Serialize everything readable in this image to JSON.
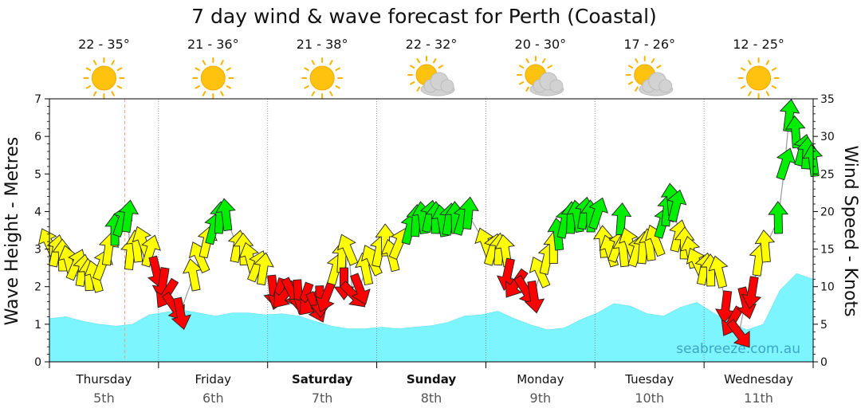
{
  "chart_data": {
    "type": "line",
    "title": "7 day wind & wave forecast for Perth (Coastal)",
    "y_left_label": "Wave Height - Metres",
    "y_right_label": "Wind Speed - Knots",
    "y_left_range": [
      0,
      7
    ],
    "y_right_range": [
      0,
      35
    ],
    "y_left_ticks": [
      "0",
      "1",
      "2",
      "3",
      "4",
      "5",
      "6",
      "7"
    ],
    "y_right_ticks": [
      "0",
      "5",
      "10",
      "15",
      "20",
      "25",
      "30",
      "35"
    ],
    "credit": "seabreeze.com.au",
    "days": [
      {
        "name": "Thursday",
        "date": "5th",
        "temp": "22 - 35°",
        "weather": "sunny",
        "bold": false
      },
      {
        "name": "Friday",
        "date": "6th",
        "temp": "21 - 36°",
        "weather": "sunny",
        "bold": false
      },
      {
        "name": "Saturday",
        "date": "7th",
        "temp": "21 - 38°",
        "weather": "sunny",
        "bold": true
      },
      {
        "name": "Sunday",
        "date": "8th",
        "temp": "22 - 32°",
        "weather": "partly-cloudy",
        "bold": true
      },
      {
        "name": "Monday",
        "date": "9th",
        "temp": "20 - 30°",
        "weather": "partly-cloudy",
        "bold": false
      },
      {
        "name": "Tuesday",
        "date": "10th",
        "temp": "17 - 26°",
        "weather": "partly-cloudy",
        "bold": false
      },
      {
        "name": "Wednesday",
        "date": "11th",
        "temp": "12 - 25°",
        "weather": "sunny",
        "bold": false
      }
    ],
    "wave_height_m": [
      1.15,
      1.2,
      1.08,
      1.0,
      0.95,
      1.0,
      1.25,
      1.32,
      1.38,
      1.3,
      1.22,
      1.3,
      1.3,
      1.25,
      1.28,
      1.22,
      1.08,
      0.95,
      0.88,
      0.88,
      0.92,
      0.88,
      0.92,
      0.96,
      1.05,
      1.22,
      1.25,
      1.35,
      1.15,
      0.98,
      0.85,
      0.9,
      1.12,
      1.3,
      1.55,
      1.48,
      1.28,
      1.22,
      1.45,
      1.58,
      1.3,
      1.05,
      0.85,
      1.0,
      1.9,
      2.35,
      2.2
    ],
    "wind": {
      "colors": {
        "light": "#ff0000",
        "moderate": "#ffff00",
        "strong": "#00ee00"
      },
      "series": [
        {
          "name": "light",
          "points": [
            [
              0.98,
              12.1
            ],
            [
              1.04,
              10.6
            ],
            [
              1.08,
              9.2
            ],
            [
              1.14,
              7.4
            ],
            [
              1.2,
              6.6
            ],
            [
              2.05,
              9.6
            ],
            [
              2.1,
              9.2
            ],
            [
              2.16,
              9.0
            ],
            [
              2.22,
              9.3
            ],
            [
              2.28,
              9.0
            ],
            [
              2.34,
              8.6
            ],
            [
              2.4,
              8.0
            ],
            [
              2.44,
              7.4
            ],
            [
              2.48,
              8.2
            ],
            [
              2.54,
              8.8
            ],
            [
              2.7,
              10.6
            ],
            [
              2.78,
              9.0
            ],
            [
              2.84,
              9.8
            ],
            [
              4.2,
              11.8
            ],
            [
              4.28,
              10.5
            ],
            [
              4.36,
              9.6
            ],
            [
              4.44,
              8.8
            ],
            [
              6.2,
              7.5
            ],
            [
              6.26,
              5.5
            ],
            [
              6.32,
              3.8
            ],
            [
              6.38,
              8.0
            ],
            [
              6.44,
              9.4
            ]
          ]
        },
        {
          "name": "moderate",
          "points": [
            [
              0.0,
              15.6
            ],
            [
              0.06,
              14.6
            ],
            [
              0.12,
              14.0
            ],
            [
              0.18,
              13.2
            ],
            [
              0.24,
              12.8
            ],
            [
              0.3,
              12.0
            ],
            [
              0.36,
              11.4
            ],
            [
              0.42,
              11.2
            ],
            [
              0.48,
              12.8
            ],
            [
              0.54,
              14.8
            ],
            [
              0.74,
              14.2
            ],
            [
              0.8,
              15.2
            ],
            [
              0.86,
              15.8
            ],
            [
              0.92,
              14.6
            ],
            [
              1.32,
              11.4
            ],
            [
              1.38,
              13.8
            ],
            [
              1.44,
              15.8
            ],
            [
              1.72,
              15.2
            ],
            [
              1.78,
              14.8
            ],
            [
              1.84,
              13.6
            ],
            [
              1.9,
              12.6
            ],
            [
              1.96,
              12.2
            ],
            [
              2.62,
              12.2
            ],
            [
              2.68,
              13.8
            ],
            [
              2.74,
              14.8
            ],
            [
              2.9,
              12.2
            ],
            [
              2.96,
              13.4
            ],
            [
              3.02,
              14.6
            ],
            [
              3.08,
              16.0
            ],
            [
              3.14,
              14.0
            ],
            [
              3.2,
              15.6
            ],
            [
              4.0,
              15.6
            ],
            [
              4.06,
              14.8
            ],
            [
              4.12,
              14.8
            ],
            [
              4.18,
              14.6
            ],
            [
              4.5,
              11.8
            ],
            [
              4.56,
              13.6
            ],
            [
              4.62,
              15.0
            ],
            [
              5.08,
              15.8
            ],
            [
              5.14,
              14.6
            ],
            [
              5.2,
              15.2
            ],
            [
              5.26,
              14.6
            ],
            [
              5.32,
              15.6
            ],
            [
              5.38,
              14.6
            ],
            [
              5.44,
              15.0
            ],
            [
              5.5,
              15.4
            ],
            [
              5.56,
              16.0
            ],
            [
              5.76,
              16.6
            ],
            [
              5.82,
              15.6
            ],
            [
              5.88,
              14.4
            ],
            [
              5.94,
              13.0
            ],
            [
              6.0,
              12.2
            ],
            [
              6.06,
              12.0
            ],
            [
              6.14,
              11.8
            ],
            [
              6.5,
              13.4
            ],
            [
              6.56,
              15.2
            ]
          ]
        },
        {
          "name": "strong",
          "points": [
            [
              0.6,
              17.4
            ],
            [
              0.66,
              18.6
            ],
            [
              0.72,
              19.2
            ],
            [
              1.5,
              17.6
            ],
            [
              1.56,
              19.0
            ],
            [
              1.62,
              19.4
            ],
            [
              3.3,
              17.6
            ],
            [
              3.36,
              18.6
            ],
            [
              3.42,
              19.0
            ],
            [
              3.48,
              19.2
            ],
            [
              3.54,
              19.0
            ],
            [
              3.6,
              18.6
            ],
            [
              3.66,
              18.8
            ],
            [
              3.72,
              19.0
            ],
            [
              3.78,
              18.8
            ],
            [
              3.84,
              19.6
            ],
            [
              4.66,
              16.8
            ],
            [
              4.72,
              18.4
            ],
            [
              4.78,
              19.0
            ],
            [
              4.84,
              19.2
            ],
            [
              4.9,
              19.6
            ],
            [
              4.96,
              19.2
            ],
            [
              5.02,
              19.6
            ],
            [
              5.24,
              18.8
            ],
            [
              5.62,
              18.4
            ],
            [
              5.66,
              20.0
            ],
            [
              5.7,
              21.4
            ],
            [
              5.74,
              20.6
            ],
            [
              6.68,
              19.0
            ],
            [
              6.74,
              26.2
            ],
            [
              6.78,
              32.6
            ],
            [
              6.84,
              30.4
            ],
            [
              6.9,
              28.0
            ],
            [
              6.94,
              27.6
            ],
            [
              7.0,
              26.6
            ]
          ]
        }
      ]
    }
  }
}
